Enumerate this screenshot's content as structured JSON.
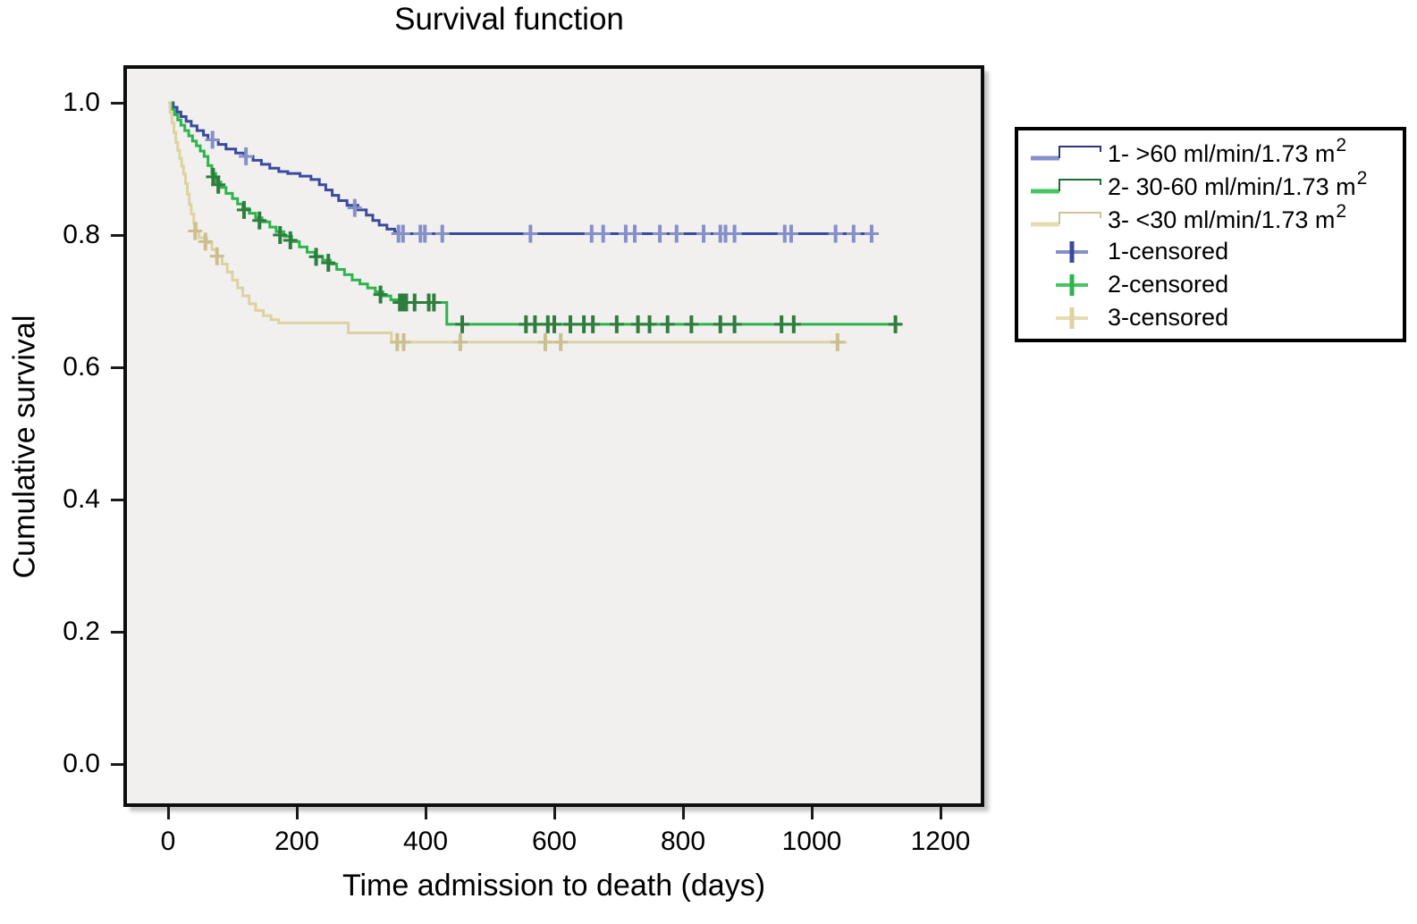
{
  "page": {
    "background": "#ffffff"
  },
  "chart_data": {
    "type": "line",
    "subtype": "kaplan-meier-step",
    "title": "Survival function",
    "xlabel": "Time admission to death (days)",
    "ylabel": "Cumulative survival",
    "xlim": [
      0,
      1260
    ],
    "ylim": [
      0.0,
      1.0
    ],
    "x_ticks": [
      0,
      200,
      400,
      600,
      800,
      1000,
      1200
    ],
    "y_ticks": [
      0.0,
      0.2,
      0.4,
      0.6,
      0.8,
      1.0
    ],
    "grid": false,
    "plot_background": "#f1f0ee",
    "frame_color": "#0d0d0d",
    "legend_position": "right-outside",
    "series": [
      {
        "name": "1- >60 ml/min/1.73 m",
        "name_sup": "2",
        "color": "#3a4a9f",
        "censor_color": "#8590c9",
        "swatch": {
          "low": "#8590c9",
          "step": "#2a3580"
        },
        "steps": [
          [
            0,
            1.0
          ],
          [
            8,
            0.993
          ],
          [
            14,
            0.986
          ],
          [
            20,
            0.979
          ],
          [
            28,
            0.972
          ],
          [
            36,
            0.965
          ],
          [
            45,
            0.958
          ],
          [
            55,
            0.951
          ],
          [
            62,
            0.944
          ],
          [
            78,
            0.937
          ],
          [
            90,
            0.93
          ],
          [
            105,
            0.924
          ],
          [
            118,
            0.919
          ],
          [
            132,
            0.913
          ],
          [
            145,
            0.907
          ],
          [
            158,
            0.901
          ],
          [
            172,
            0.896
          ],
          [
            186,
            0.893
          ],
          [
            205,
            0.889
          ],
          [
            222,
            0.884
          ],
          [
            235,
            0.876
          ],
          [
            245,
            0.868
          ],
          [
            255,
            0.86
          ],
          [
            265,
            0.852
          ],
          [
            278,
            0.845
          ],
          [
            295,
            0.838
          ],
          [
            308,
            0.83
          ],
          [
            318,
            0.822
          ],
          [
            328,
            0.815
          ],
          [
            340,
            0.809
          ],
          [
            352,
            0.805
          ],
          [
            358,
            0.802
          ]
        ],
        "end_day": 1103,
        "final_value": 0.802,
        "censored": [
          [
            69,
            0.944
          ],
          [
            121,
            0.919
          ],
          [
            290,
            0.841
          ],
          [
            358,
            0.802
          ],
          [
            365,
            0.802
          ],
          [
            392,
            0.802
          ],
          [
            399,
            0.802
          ],
          [
            426,
            0.802
          ],
          [
            563,
            0.802
          ],
          [
            658,
            0.802
          ],
          [
            676,
            0.802
          ],
          [
            711,
            0.802
          ],
          [
            725,
            0.802
          ],
          [
            764,
            0.802
          ],
          [
            790,
            0.802
          ],
          [
            832,
            0.802
          ],
          [
            858,
            0.802
          ],
          [
            866,
            0.802
          ],
          [
            880,
            0.802
          ],
          [
            958,
            0.802
          ],
          [
            968,
            0.802
          ],
          [
            1037,
            0.802
          ],
          [
            1065,
            0.802
          ],
          [
            1093,
            0.802
          ]
        ]
      },
      {
        "name": "2- 30-60 ml/min/1.73 m",
        "name_sup": "2",
        "color": "#2db44c",
        "censor_color": "#2e7d3e",
        "swatch": {
          "low": "#49c463",
          "step": "#1e6e32"
        },
        "steps": [
          [
            0,
            1.0
          ],
          [
            5,
            0.99
          ],
          [
            10,
            0.982
          ],
          [
            15,
            0.974
          ],
          [
            20,
            0.966
          ],
          [
            26,
            0.958
          ],
          [
            32,
            0.95
          ],
          [
            38,
            0.942
          ],
          [
            44,
            0.935
          ],
          [
            50,
            0.927
          ],
          [
            56,
            0.919
          ],
          [
            62,
            0.905
          ],
          [
            68,
            0.893
          ],
          [
            74,
            0.88
          ],
          [
            82,
            0.872
          ],
          [
            90,
            0.863
          ],
          [
            100,
            0.855
          ],
          [
            108,
            0.847
          ],
          [
            116,
            0.84
          ],
          [
            126,
            0.833
          ],
          [
            136,
            0.826
          ],
          [
            146,
            0.82
          ],
          [
            158,
            0.812
          ],
          [
            168,
            0.805
          ],
          [
            180,
            0.798
          ],
          [
            192,
            0.79
          ],
          [
            204,
            0.782
          ],
          [
            216,
            0.774
          ],
          [
            228,
            0.768
          ],
          [
            240,
            0.762
          ],
          [
            252,
            0.756
          ],
          [
            262,
            0.748
          ],
          [
            274,
            0.74
          ],
          [
            286,
            0.732
          ],
          [
            298,
            0.726
          ],
          [
            310,
            0.72
          ],
          [
            322,
            0.714
          ],
          [
            334,
            0.708
          ],
          [
            346,
            0.702
          ],
          [
            356,
            0.698
          ],
          [
            433,
            0.665
          ]
        ],
        "end_day": 1139,
        "final_value": 0.665,
        "censored": [
          [
            70,
            0.888
          ],
          [
            78,
            0.876
          ],
          [
            118,
            0.838
          ],
          [
            142,
            0.822
          ],
          [
            174,
            0.8
          ],
          [
            190,
            0.792
          ],
          [
            230,
            0.767
          ],
          [
            249,
            0.758
          ],
          [
            330,
            0.71
          ],
          [
            360,
            0.698
          ],
          [
            365,
            0.698
          ],
          [
            370,
            0.698
          ],
          [
            383,
            0.698
          ],
          [
            405,
            0.698
          ],
          [
            413,
            0.698
          ],
          [
            457,
            0.665
          ],
          [
            556,
            0.665
          ],
          [
            570,
            0.665
          ],
          [
            590,
            0.665
          ],
          [
            600,
            0.665
          ],
          [
            625,
            0.665
          ],
          [
            646,
            0.665
          ],
          [
            660,
            0.665
          ],
          [
            697,
            0.665
          ],
          [
            730,
            0.665
          ],
          [
            748,
            0.665
          ],
          [
            776,
            0.665
          ],
          [
            813,
            0.665
          ],
          [
            858,
            0.665
          ],
          [
            880,
            0.665
          ],
          [
            953,
            0.665
          ],
          [
            972,
            0.665
          ],
          [
            1130,
            0.665
          ]
        ]
      },
      {
        "name": "3- <30 ml/min/1.73 m",
        "name_sup": "2",
        "color": "#ddd2a2",
        "censor_color": "#cbbf8e",
        "swatch": {
          "low": "#e6dcb2",
          "step": "#cfc392"
        },
        "steps": [
          [
            0,
            1.0
          ],
          [
            3,
            0.985
          ],
          [
            6,
            0.97
          ],
          [
            9,
            0.955
          ],
          [
            12,
            0.94
          ],
          [
            15,
            0.928
          ],
          [
            18,
            0.916
          ],
          [
            21,
            0.904
          ],
          [
            24,
            0.892
          ],
          [
            27,
            0.878
          ],
          [
            30,
            0.862
          ],
          [
            33,
            0.846
          ],
          [
            36,
            0.832
          ],
          [
            40,
            0.818
          ],
          [
            44,
            0.806
          ],
          [
            48,
            0.796
          ],
          [
            60,
            0.788
          ],
          [
            68,
            0.778
          ],
          [
            76,
            0.768
          ],
          [
            84,
            0.756
          ],
          [
            92,
            0.744
          ],
          [
            100,
            0.732
          ],
          [
            108,
            0.72
          ],
          [
            116,
            0.708
          ],
          [
            126,
            0.696
          ],
          [
            136,
            0.686
          ],
          [
            148,
            0.678
          ],
          [
            160,
            0.672
          ],
          [
            172,
            0.667
          ],
          [
            280,
            0.652
          ],
          [
            347,
            0.638
          ]
        ],
        "end_day": 1054,
        "final_value": 0.638,
        "censored": [
          [
            42,
            0.806
          ],
          [
            58,
            0.79
          ],
          [
            76,
            0.768
          ],
          [
            356,
            0.638
          ],
          [
            366,
            0.638
          ],
          [
            454,
            0.638
          ],
          [
            586,
            0.638
          ],
          [
            610,
            0.638
          ],
          [
            1040,
            0.638
          ]
        ]
      }
    ]
  },
  "legend": {
    "items": [
      {
        "label": "1- >60 ml/min/1.73 m",
        "sup": "2"
      },
      {
        "label": "2- 30-60 ml/min/1.73 m",
        "sup": "2"
      },
      {
        "label": "3- <30 ml/min/1.73 m",
        "sup": "2"
      },
      {
        "label": "1-censored",
        "sup": ""
      },
      {
        "label": "2-censored",
        "sup": ""
      },
      {
        "label": "3-censored",
        "sup": ""
      }
    ]
  }
}
